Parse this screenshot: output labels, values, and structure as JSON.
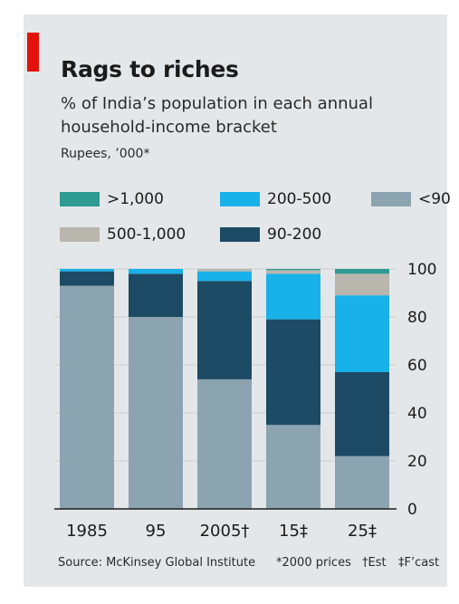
{
  "chart_data": {
    "type": "bar",
    "stacked": true,
    "title": "Rags to riches",
    "subtitle": "% of India’s population in each annual household-income bracket",
    "units_note": "Rupees, ’000*",
    "categories": [
      "1985",
      "95",
      "2005†",
      "15‡",
      "25‡"
    ],
    "series": [
      {
        "name": "<90",
        "color": "#8ca4b0",
        "values": [
          93,
          80,
          54,
          35,
          22
        ]
      },
      {
        "name": "90-200",
        "color": "#1d4a64",
        "values": [
          6,
          18,
          41,
          44,
          35
        ]
      },
      {
        "name": "200-500",
        "color": "#18b1ea",
        "values": [
          1,
          2,
          4,
          19,
          32
        ]
      },
      {
        "name": "500-1,000",
        "color": "#b9b6ae",
        "values": [
          0,
          0,
          1,
          1.5,
          9
        ]
      },
      {
        "name": ">1,000",
        "color": "#2e9a92",
        "values": [
          0,
          0,
          0,
          0.5,
          2
        ]
      }
    ],
    "ylim": [
      0,
      100
    ],
    "yticks": [
      0,
      20,
      40,
      60,
      80,
      100
    ],
    "legend_order": [
      ">1,000",
      "200-500",
      "<90",
      "500-1,000",
      "90-200"
    ],
    "source": "Source: McKinsey Global Institute",
    "notes": [
      "*2000 prices",
      "†Est",
      "‡F’cast"
    ]
  }
}
